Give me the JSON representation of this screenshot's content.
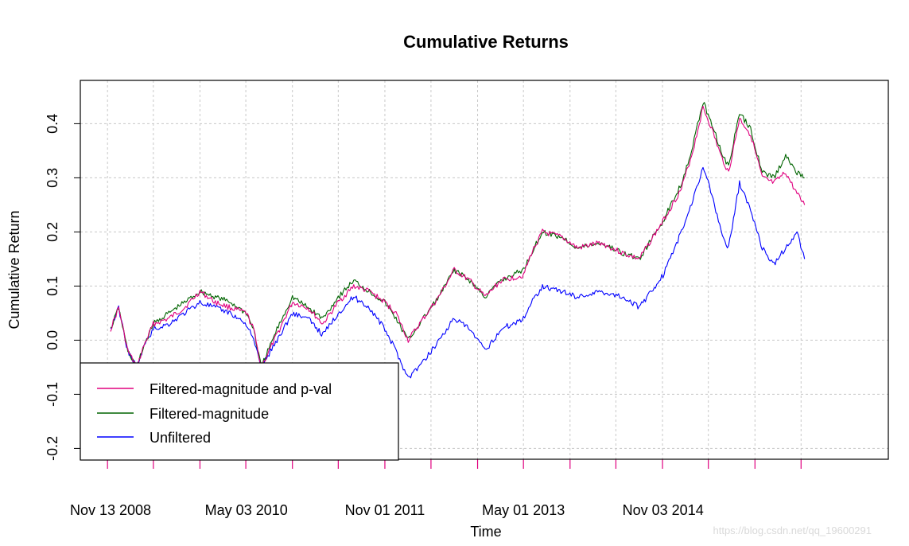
{
  "chart_data": {
    "type": "line",
    "title": "Cumulative Returns",
    "xlabel": "Time",
    "ylabel": "Cumulative Return",
    "ylim": [
      -0.22,
      0.48
    ],
    "xlim": [
      "2008-11-13",
      "2016-12-31"
    ],
    "y_ticks": [
      -0.2,
      -0.1,
      0.0,
      0.1,
      0.2,
      0.3,
      0.4
    ],
    "y_tick_labels": [
      "-0.2",
      "-0.1",
      "0.0",
      "0.1",
      "0.2",
      "0.3",
      "0.4"
    ],
    "x_tick_labels": [
      "Nov 13 2008",
      "May 03 2010",
      "Nov 01 2011",
      "May 01 2013",
      "Nov 03 2014"
    ],
    "x_tick_dates": [
      "2008-11-13",
      "2010-05-03",
      "2011-11-01",
      "2013-05-01",
      "2014-11-03"
    ],
    "grid": true,
    "legend_position": "bottom-left",
    "watermark": "https://blog.csdn.net/qq_19600291",
    "series": [
      {
        "name": "Filtered-magnitude and p-val",
        "color": "#e0007f",
        "points": [
          [
            "2008-11-13",
            0.02
          ],
          [
            "2008-12-15",
            0.06
          ],
          [
            "2009-01-20",
            -0.02
          ],
          [
            "2009-02-25",
            -0.05
          ],
          [
            "2009-03-25",
            -0.01
          ],
          [
            "2009-05-01",
            0.03
          ],
          [
            "2009-07-01",
            0.04
          ],
          [
            "2009-09-01",
            0.06
          ],
          [
            "2009-11-01",
            0.09
          ],
          [
            "2010-01-01",
            0.07
          ],
          [
            "2010-03-01",
            0.06
          ],
          [
            "2010-05-03",
            0.05
          ],
          [
            "2010-06-01",
            0.02
          ],
          [
            "2010-07-01",
            -0.05
          ],
          [
            "2010-09-01",
            0.01
          ],
          [
            "2010-11-01",
            0.07
          ],
          [
            "2011-01-01",
            0.06
          ],
          [
            "2011-03-01",
            0.03
          ],
          [
            "2011-05-01",
            0.07
          ],
          [
            "2011-07-01",
            0.1
          ],
          [
            "2011-09-01",
            0.09
          ],
          [
            "2011-11-01",
            0.07
          ],
          [
            "2011-12-15",
            0.05
          ],
          [
            "2012-02-01",
            0.0
          ],
          [
            "2012-04-01",
            0.04
          ],
          [
            "2012-06-01",
            0.08
          ],
          [
            "2012-08-01",
            0.13
          ],
          [
            "2012-10-01",
            0.11
          ],
          [
            "2012-12-01",
            0.08
          ],
          [
            "2013-02-01",
            0.11
          ],
          [
            "2013-05-01",
            0.12
          ],
          [
            "2013-06-01",
            0.16
          ],
          [
            "2013-07-15",
            0.2
          ],
          [
            "2013-10-01",
            0.19
          ],
          [
            "2013-12-01",
            0.17
          ],
          [
            "2014-03-01",
            0.18
          ],
          [
            "2014-06-01",
            0.16
          ],
          [
            "2014-08-01",
            0.15
          ],
          [
            "2014-11-03",
            0.22
          ],
          [
            "2015-01-15",
            0.28
          ],
          [
            "2015-03-01",
            0.35
          ],
          [
            "2015-04-10",
            0.43
          ],
          [
            "2015-05-15",
            0.39
          ],
          [
            "2015-06-20",
            0.34
          ],
          [
            "2015-07-20",
            0.31
          ],
          [
            "2015-09-01",
            0.41
          ],
          [
            "2015-10-15",
            0.38
          ],
          [
            "2015-11-30",
            0.3
          ],
          [
            "2016-01-15",
            0.29
          ],
          [
            "2016-03-01",
            0.31
          ],
          [
            "2016-04-15",
            0.27
          ],
          [
            "2016-05-15",
            0.25
          ]
        ]
      },
      {
        "name": "Filtered-magnitude",
        "color": "#006400",
        "points": [
          [
            "2008-11-13",
            0.02
          ],
          [
            "2008-12-15",
            0.06
          ],
          [
            "2009-01-20",
            -0.02
          ],
          [
            "2009-02-25",
            -0.05
          ],
          [
            "2009-03-25",
            -0.01
          ],
          [
            "2009-05-01",
            0.03
          ],
          [
            "2009-07-01",
            0.05
          ],
          [
            "2009-09-01",
            0.07
          ],
          [
            "2009-11-01",
            0.09
          ],
          [
            "2010-01-01",
            0.08
          ],
          [
            "2010-03-01",
            0.07
          ],
          [
            "2010-05-03",
            0.05
          ],
          [
            "2010-06-01",
            0.02
          ],
          [
            "2010-07-01",
            -0.05
          ],
          [
            "2010-09-01",
            0.02
          ],
          [
            "2010-11-01",
            0.08
          ],
          [
            "2011-01-01",
            0.06
          ],
          [
            "2011-03-01",
            0.04
          ],
          [
            "2011-05-01",
            0.08
          ],
          [
            "2011-07-01",
            0.11
          ],
          [
            "2011-09-01",
            0.09
          ],
          [
            "2011-11-01",
            0.07
          ],
          [
            "2011-12-15",
            0.04
          ],
          [
            "2012-02-01",
            0.0
          ],
          [
            "2012-04-01",
            0.04
          ],
          [
            "2012-06-01",
            0.08
          ],
          [
            "2012-08-01",
            0.13
          ],
          [
            "2012-10-01",
            0.11
          ],
          [
            "2012-12-01",
            0.08
          ],
          [
            "2013-02-01",
            0.11
          ],
          [
            "2013-05-01",
            0.13
          ],
          [
            "2013-06-01",
            0.16
          ],
          [
            "2013-07-15",
            0.2
          ],
          [
            "2013-10-01",
            0.19
          ],
          [
            "2013-12-01",
            0.17
          ],
          [
            "2014-03-01",
            0.18
          ],
          [
            "2014-06-01",
            0.16
          ],
          [
            "2014-08-01",
            0.15
          ],
          [
            "2014-11-03",
            0.22
          ],
          [
            "2015-01-15",
            0.29
          ],
          [
            "2015-03-01",
            0.36
          ],
          [
            "2015-04-10",
            0.44
          ],
          [
            "2015-05-15",
            0.4
          ],
          [
            "2015-06-20",
            0.35
          ],
          [
            "2015-07-20",
            0.32
          ],
          [
            "2015-09-01",
            0.42
          ],
          [
            "2015-10-15",
            0.39
          ],
          [
            "2015-11-30",
            0.31
          ],
          [
            "2016-01-15",
            0.3
          ],
          [
            "2016-03-01",
            0.34
          ],
          [
            "2016-04-15",
            0.31
          ],
          [
            "2016-05-15",
            0.3
          ]
        ]
      },
      {
        "name": "Unfiltered",
        "color": "#0000ff",
        "points": [
          [
            "2008-11-13",
            0.02
          ],
          [
            "2008-12-15",
            0.06
          ],
          [
            "2009-01-20",
            -0.02
          ],
          [
            "2009-02-25",
            -0.05
          ],
          [
            "2009-03-25",
            -0.01
          ],
          [
            "2009-05-01",
            0.02
          ],
          [
            "2009-07-01",
            0.03
          ],
          [
            "2009-09-01",
            0.05
          ],
          [
            "2009-11-01",
            0.07
          ],
          [
            "2010-01-01",
            0.06
          ],
          [
            "2010-03-01",
            0.05
          ],
          [
            "2010-05-03",
            0.03
          ],
          [
            "2010-06-01",
            0.0
          ],
          [
            "2010-07-01",
            -0.05
          ],
          [
            "2010-09-01",
            0.0
          ],
          [
            "2010-11-01",
            0.05
          ],
          [
            "2011-01-01",
            0.04
          ],
          [
            "2011-03-01",
            0.01
          ],
          [
            "2011-05-01",
            0.05
          ],
          [
            "2011-07-01",
            0.08
          ],
          [
            "2011-09-01",
            0.06
          ],
          [
            "2011-11-01",
            0.02
          ],
          [
            "2011-12-15",
            -0.02
          ],
          [
            "2012-02-01",
            -0.07
          ],
          [
            "2012-04-01",
            -0.04
          ],
          [
            "2012-06-01",
            0.0
          ],
          [
            "2012-08-01",
            0.04
          ],
          [
            "2012-10-01",
            0.02
          ],
          [
            "2012-12-01",
            -0.02
          ],
          [
            "2013-02-01",
            0.02
          ],
          [
            "2013-05-01",
            0.04
          ],
          [
            "2013-06-01",
            0.07
          ],
          [
            "2013-07-15",
            0.1
          ],
          [
            "2013-10-01",
            0.09
          ],
          [
            "2013-12-01",
            0.08
          ],
          [
            "2014-03-01",
            0.09
          ],
          [
            "2014-06-01",
            0.08
          ],
          [
            "2014-08-01",
            0.06
          ],
          [
            "2014-11-03",
            0.12
          ],
          [
            "2015-01-15",
            0.2
          ],
          [
            "2015-03-01",
            0.26
          ],
          [
            "2015-04-10",
            0.32
          ],
          [
            "2015-05-15",
            0.27
          ],
          [
            "2015-06-20",
            0.2
          ],
          [
            "2015-07-20",
            0.17
          ],
          [
            "2015-09-01",
            0.29
          ],
          [
            "2015-10-15",
            0.24
          ],
          [
            "2015-11-30",
            0.17
          ],
          [
            "2016-01-15",
            0.14
          ],
          [
            "2016-03-01",
            0.17
          ],
          [
            "2016-04-15",
            0.2
          ],
          [
            "2016-05-15",
            0.15
          ]
        ]
      }
    ]
  }
}
